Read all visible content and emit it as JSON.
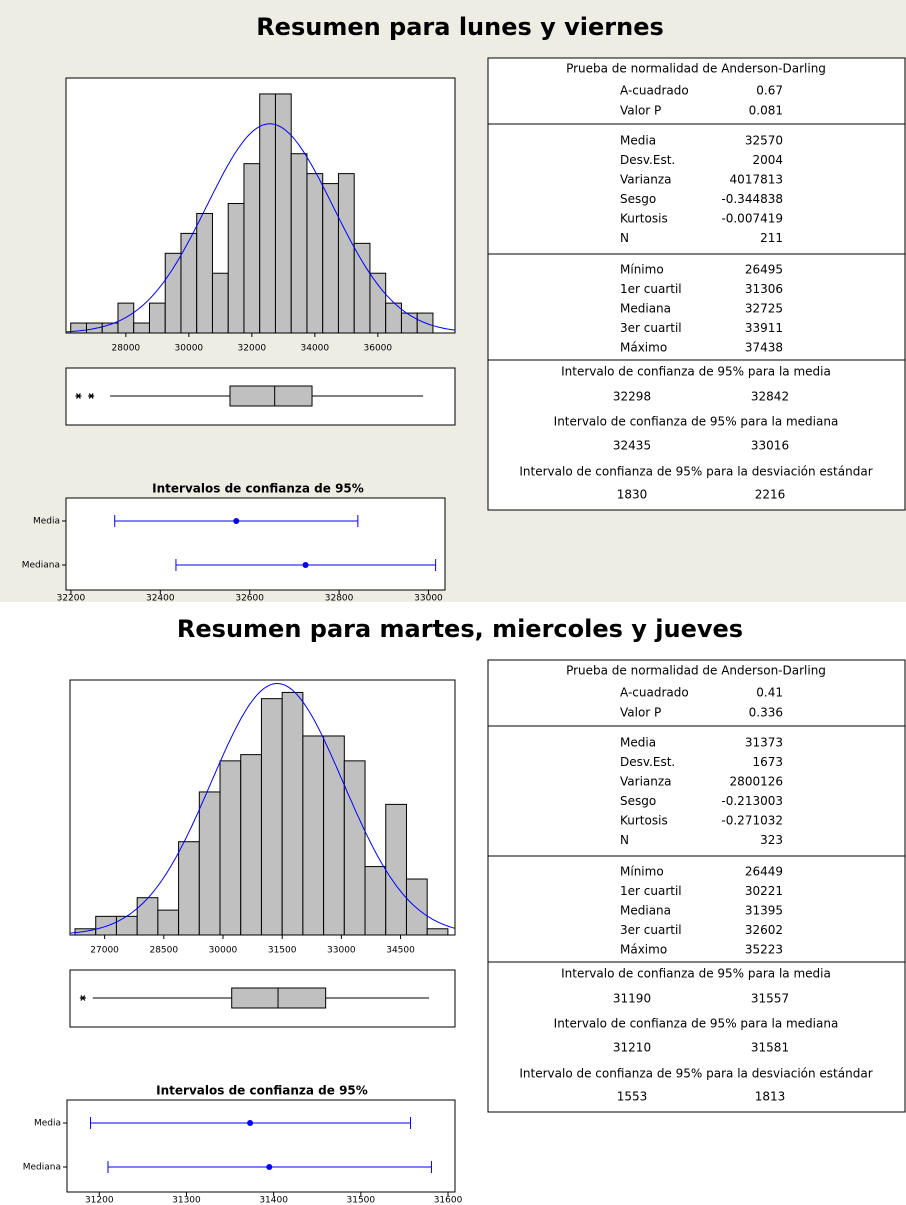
{
  "panels": [
    {
      "title": "Resumen para lunes y viernes",
      "histogram": {
        "type": "histogram",
        "bins": [
          26250,
          26750,
          27250,
          27750,
          28250,
          28750,
          29250,
          29750,
          30250,
          30750,
          31250,
          31750,
          32250,
          32750,
          33250,
          33750,
          34250,
          34750,
          35250,
          35750,
          36250,
          36750,
          37250,
          37750
        ],
        "counts": [
          1,
          1,
          1,
          3,
          1,
          3,
          8,
          10,
          12,
          6,
          13,
          17,
          24,
          24,
          18,
          16,
          15,
          16,
          9,
          6,
          3,
          2,
          2
        ],
        "color": "#c0c0c0",
        "curve_color": "#0000ff",
        "xlim": [
          26100,
          38450
        ],
        "ylim": [
          0,
          25.6
        ],
        "xticks": [
          28000,
          30000,
          32000,
          34000,
          36000
        ]
      },
      "boxplot": {
        "type": "boxplot",
        "whisker_low": 27500,
        "q1": 31306,
        "median": 32725,
        "q3": 33911,
        "whisker_high": 37438,
        "outliers": [
          26495,
          26900
        ],
        "color": "#c0c0c0"
      },
      "ci_chart": {
        "type": "interval",
        "title": "Intervalos de confianza de 95%",
        "categories": [
          "Media",
          "Mediana"
        ],
        "estimates": [
          32570,
          32725
        ],
        "lows": [
          32298,
          32435
        ],
        "highs": [
          32842,
          33016
        ],
        "color": "#0000ff",
        "xlim": [
          32189,
          33037
        ],
        "xticks": [
          32200,
          32400,
          32600,
          32800,
          33000
        ]
      },
      "normality": {
        "title": "Prueba de normalidad de Anderson-Darling",
        "rows": [
          {
            "label": "A-cuadrado",
            "value": 0.67
          },
          {
            "label": "Valor P",
            "value": 0.081
          }
        ]
      },
      "descriptive": {
        "rows": [
          {
            "label": "Media",
            "value": 32570
          },
          {
            "label": "Desv.Est.",
            "value": 2004
          },
          {
            "label": "Varianza",
            "value": 4017813
          },
          {
            "label": "Sesgo",
            "value": -0.344838
          },
          {
            "label": "Kurtosis",
            "value": -0.007419
          },
          {
            "label": "N",
            "value": 211
          }
        ]
      },
      "quantiles": {
        "rows": [
          {
            "label": "Mínimo",
            "value": 26495
          },
          {
            "label": "1er cuartil",
            "value": 31306
          },
          {
            "label": "Mediana",
            "value": 32725
          },
          {
            "label": "3er cuartil",
            "value": 33911
          },
          {
            "label": "Máximo",
            "value": 37438
          }
        ]
      },
      "intervals": [
        {
          "title": "Intervalo de confianza de 95% para la media",
          "low": 32298,
          "high": 32842
        },
        {
          "title": "Intervalo de confianza de 95% para la mediana",
          "low": 32435,
          "high": 33016
        },
        {
          "title": "Intervalo de confianza de 95% para la desviación estándar",
          "low": 1830,
          "high": 2216
        }
      ]
    },
    {
      "title": "Resumen para martes, miercoles y jueves",
      "histogram": {
        "type": "histogram",
        "bins": [
          26250,
          26775,
          27300,
          27825,
          28350,
          28875,
          29400,
          29925,
          30450,
          30975,
          31500,
          32025,
          32550,
          33075,
          33600,
          34125,
          34650,
          35175,
          35700
        ],
        "counts": [
          1,
          3,
          3,
          6,
          4,
          15,
          23,
          28,
          29,
          38,
          39,
          32,
          32,
          28,
          11,
          21,
          9,
          1
        ],
        "color": "#c0c0c0",
        "curve_color": "#0000ff",
        "xlim": [
          26123,
          35880
        ],
        "ylim": [
          0,
          41
        ],
        "xticks": [
          27000,
          28500,
          30000,
          31500,
          33000,
          34500
        ]
      },
      "boxplot": {
        "type": "boxplot",
        "whisker_low": 26700,
        "q1": 30221,
        "median": 31395,
        "q3": 32602,
        "whisker_high": 35223,
        "outliers": [
          26449
        ],
        "color": "#c0c0c0"
      },
      "ci_chart": {
        "type": "interval",
        "title": "Intervalos de confianza de 95%",
        "categories": [
          "Media",
          "Mediana"
        ],
        "estimates": [
          31373,
          31395
        ],
        "lows": [
          31190,
          31210
        ],
        "highs": [
          31557,
          31581
        ],
        "color": "#0000ff",
        "xlim": [
          31163,
          31608
        ],
        "xticks": [
          31200,
          31300,
          31400,
          31500,
          31600
        ]
      },
      "normality": {
        "title": "Prueba de normalidad de Anderson-Darling",
        "rows": [
          {
            "label": "A-cuadrado",
            "value": 0.41
          },
          {
            "label": "Valor P",
            "value": 0.336
          }
        ]
      },
      "descriptive": {
        "rows": [
          {
            "label": "Media",
            "value": 31373
          },
          {
            "label": "Desv.Est.",
            "value": 1673
          },
          {
            "label": "Varianza",
            "value": 2800126
          },
          {
            "label": "Sesgo",
            "value": -0.213003
          },
          {
            "label": "Kurtosis",
            "value": -0.271032
          },
          {
            "label": "N",
            "value": 323
          }
        ]
      },
      "quantiles": {
        "rows": [
          {
            "label": "Mínimo",
            "value": 26449
          },
          {
            "label": "1er cuartil",
            "value": 30221
          },
          {
            "label": "Mediana",
            "value": 31395
          },
          {
            "label": "3er cuartil",
            "value": 32602
          },
          {
            "label": "Máximo",
            "value": 35223
          }
        ]
      },
      "intervals": [
        {
          "title": "Intervalo de confianza de 95% para la media",
          "low": 31190,
          "high": 31557
        },
        {
          "title": "Intervalo de confianza de 95% para la mediana",
          "low": 31210,
          "high": 31581
        },
        {
          "title": "Intervalo de confianza de 95% para la desviación estándar",
          "low": 1553,
          "high": 1813
        }
      ]
    }
  ]
}
